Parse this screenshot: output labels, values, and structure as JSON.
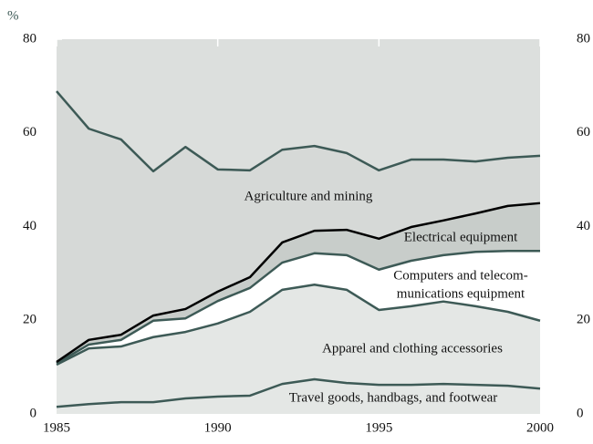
{
  "chart_data": {
    "type": "stacked_area",
    "y_unit": "%",
    "x": [
      1985,
      1986,
      1987,
      1988,
      1989,
      1990,
      1991,
      1992,
      1993,
      1994,
      1995,
      1996,
      1997,
      1998,
      1999,
      2000
    ],
    "xlim": [
      1985,
      2000
    ],
    "xticks": [
      1985,
      1990,
      1995,
      2000
    ],
    "ylim": [
      0,
      80
    ],
    "yticks": [
      0,
      20,
      40,
      60,
      80
    ],
    "background": "#dcdfdd",
    "series": [
      {
        "name": [
          "Travel goods, handbags, and footwear"
        ],
        "color": "#e4e7e5",
        "line_color": "#3d5a56",
        "values": [
          1.5,
          2.1,
          2.5,
          2.5,
          3.3,
          3.7,
          3.9,
          6.4,
          7.4,
          6.6,
          6.2,
          6.2,
          6.4,
          6.2,
          6.0,
          5.4
        ]
      },
      {
        "name": [
          "Apparel and clothing accessories"
        ],
        "color": "#e4e7e5",
        "line_color": "#3d5a56",
        "values": [
          9.0,
          11.9,
          11.9,
          13.9,
          14.2,
          15.6,
          17.9,
          20.1,
          20.2,
          19.9,
          16.0,
          16.8,
          17.6,
          16.8,
          15.8,
          14.5
        ]
      },
      {
        "name": [
          "Computers and telecom-",
          "munications equipment"
        ],
        "color": "#ffffff",
        "line_color": "#3d5a56",
        "values": [
          0.3,
          0.8,
          1.4,
          3.5,
          2.9,
          4.8,
          5.1,
          5.8,
          6.7,
          7.4,
          8.6,
          9.7,
          9.9,
          11.6,
          13.0,
          14.9
        ]
      },
      {
        "name": [
          "Electrical equipment"
        ],
        "color": "#c8cdca",
        "line_color": "#000000",
        "values": [
          0.3,
          1.0,
          1.1,
          1.1,
          2.0,
          2.0,
          2.3,
          4.3,
          4.8,
          5.4,
          6.6,
          7.2,
          7.4,
          8.2,
          9.6,
          10.2
        ]
      },
      {
        "name": [
          "Agriculture and mining"
        ],
        "color": "#d6d9d7",
        "line_color": "#3d5a56",
        "values": [
          57.8,
          45.1,
          41.7,
          30.8,
          34.6,
          26.1,
          22.8,
          19.8,
          18.1,
          16.4,
          14.6,
          14.4,
          13.0,
          11.1,
          10.3,
          10.1
        ]
      }
    ]
  }
}
